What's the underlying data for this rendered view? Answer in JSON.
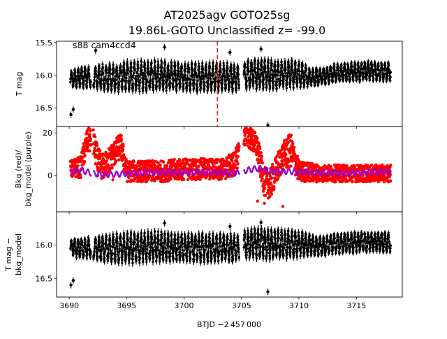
{
  "title_line1": "AT2025agv  GOTO25sg",
  "title_line2": "19.86L-GOTO Unclassified z= -99.0",
  "xlabel": "BTJD −2 457 000",
  "annotation": "s88 cam4ccd4",
  "colors": {
    "lightcurve": "#000000",
    "background": "#ff0000",
    "bkg_model": "#9400d3",
    "event_line": "#d62728"
  },
  "chart_data": [
    {
      "type": "scatter",
      "panel": "top",
      "ylabel": "T mag",
      "y_inverted": true,
      "xlim": [
        3688.9,
        3719.0
      ],
      "ylim": [
        16.78,
        15.48
      ],
      "x_ticks": [
        3690,
        3695,
        3700,
        3705,
        3710,
        3715
      ],
      "y_ticks": [
        15.5,
        16.0,
        16.5
      ],
      "y_tick_labels": [
        "15.5",
        "16.0",
        "16.5"
      ],
      "event_time": 3702.9,
      "series": [
        {
          "name": "T mag",
          "segments": [
            [
              3690.1,
              3691.9
            ],
            [
              3692.1,
              3704.8
            ],
            [
              3705.2,
              3718.0
            ]
          ],
          "x": [
            3690.1,
            3690.35,
            3690.5,
            3691.0,
            3691.6,
            3692.2,
            3693.0,
            3694.0,
            3695.0,
            3696.0,
            3697.0,
            3698.0,
            3699.0,
            3700.0,
            3701.0,
            3702.0,
            3703.0,
            3704.0,
            3704.6,
            3705.3,
            3706.0,
            3707.0,
            3708.0,
            3709.0,
            3710.0,
            3711.0,
            3712.0,
            3713.0,
            3714.0,
            3715.0,
            3716.0,
            3717.0,
            3718.0
          ],
          "median": [
            16.05,
            16.05,
            16.05,
            16.03,
            16.02,
            16.03,
            16.03,
            16.04,
            16.02,
            16.02,
            16.01,
            16.0,
            16.02,
            16.03,
            16.03,
            16.03,
            16.02,
            16.03,
            16.05,
            16.0,
            15.98,
            15.98,
            15.99,
            15.98,
            15.98,
            16.03,
            16.02,
            15.97,
            15.96,
            15.95,
            15.93,
            15.94,
            15.95
          ],
          "amplitude": [
            0.22,
            0.22,
            0.24,
            0.26,
            0.27,
            0.28,
            0.33,
            0.36,
            0.38,
            0.38,
            0.38,
            0.37,
            0.36,
            0.36,
            0.36,
            0.36,
            0.35,
            0.36,
            0.33,
            0.35,
            0.38,
            0.38,
            0.37,
            0.36,
            0.33,
            0.24,
            0.22,
            0.24,
            0.24,
            0.25,
            0.24,
            0.24,
            0.24
          ],
          "period": 0.3,
          "outliers": [
            [
              3690.15,
              16.6
            ],
            [
              3690.35,
              16.52
            ],
            [
              3698.3,
              15.57
            ],
            [
              3704.0,
              15.65
            ],
            [
              3707.3,
              16.76
            ],
            [
              3692.3,
              15.62
            ],
            [
              3706.7,
              15.6
            ]
          ]
        }
      ]
    },
    {
      "type": "scatter",
      "panel": "middle",
      "ylabel": "Bkg (red)/\nbkg_model (purple)",
      "xlim": [
        3688.9,
        3719.0
      ],
      "ylim": [
        -17,
        23
      ],
      "y_ticks": [
        0,
        20
      ],
      "y_tick_labels": [
        "0",
        "20"
      ],
      "series": [
        {
          "name": "Bkg",
          "x": [
            3690.1,
            3691.0,
            3691.5,
            3692.0,
            3692.5,
            3693.0,
            3694.0,
            3694.5,
            3695.0,
            3696.0,
            3698.0,
            3700.0,
            3702.0,
            3703.5,
            3704.5,
            3705.0,
            3705.5,
            3706.3,
            3707.0,
            3707.5,
            3708.5,
            3709.3,
            3710.0,
            3712.0,
            3714.0,
            3716.0,
            3718.0
          ],
          "center": [
            3,
            4,
            15,
            18,
            6,
            4,
            11,
            14,
            2,
            2,
            2,
            3,
            3,
            3,
            6,
            18,
            19,
            14,
            -3,
            -4,
            8,
            12,
            2,
            1,
            1,
            1,
            1
          ],
          "spread": [
            4,
            5,
            6,
            6,
            7,
            6,
            6,
            6,
            5,
            5,
            5,
            5,
            5,
            5,
            6,
            5,
            5,
            6,
            7,
            7,
            7,
            8,
            5,
            4,
            4,
            4,
            4
          ],
          "outliers": [
            [
              3708.6,
              -14.5
            ],
            [
              3707.0,
              -13
            ],
            [
              3706.4,
              -12
            ],
            [
              3693.8,
              -2
            ],
            [
              3701.6,
              4.5
            ]
          ]
        },
        {
          "name": "bkg_model",
          "x": [
            3690.1,
            3691.0,
            3692.0,
            3693.0,
            3694.0,
            3695.0,
            3698.0,
            3700.0,
            3703.0,
            3704.5,
            3705.5,
            3706.5,
            3707.5,
            3709.0,
            3711.0,
            3714.0,
            3716.0,
            3718.0
          ],
          "center": [
            1.5,
            2.5,
            1.0,
            0.5,
            0.5,
            1.0,
            1.5,
            1.5,
            1.5,
            1.0,
            2.5,
            3.5,
            2.0,
            2.0,
            1.5,
            1.0,
            1.5,
            2.0
          ],
          "wiggle": 1.3,
          "period": 0.5
        }
      ]
    },
    {
      "type": "scatter",
      "panel": "bottom",
      "ylabel": "T mag −\nbkg_model",
      "y_inverted": true,
      "xlim": [
        3688.9,
        3719.0
      ],
      "ylim": [
        16.78,
        15.5
      ],
      "x_ticks": [
        3690,
        3695,
        3700,
        3705,
        3710,
        3715
      ],
      "x_tick_labels": [
        "3690",
        "3695",
        "3700",
        "3705",
        "3710",
        "3715"
      ],
      "y_ticks": [
        16.0,
        16.5
      ],
      "y_tick_labels": [
        "16.0",
        "16.5"
      ],
      "series": [
        {
          "name": "T mag - bkg_model",
          "segments": [
            [
              3690.1,
              3691.9
            ],
            [
              3692.1,
              3704.8
            ],
            [
              3705.2,
              3718.0
            ]
          ],
          "x": [
            3690.1,
            3690.35,
            3690.5,
            3691.0,
            3691.6,
            3692.2,
            3693.0,
            3694.0,
            3695.0,
            3696.0,
            3697.0,
            3698.0,
            3699.0,
            3700.0,
            3701.0,
            3702.0,
            3703.0,
            3704.0,
            3704.6,
            3705.3,
            3706.0,
            3707.0,
            3708.0,
            3709.0,
            3710.0,
            3711.0,
            3712.0,
            3713.0,
            3714.0,
            3715.0,
            3716.0,
            3717.0,
            3718.0
          ],
          "median": [
            16.03,
            16.03,
            16.05,
            16.05,
            16.04,
            16.05,
            16.05,
            16.05,
            16.04,
            16.04,
            16.03,
            16.02,
            16.04,
            16.04,
            16.04,
            16.04,
            16.04,
            16.04,
            16.05,
            16.0,
            15.98,
            15.98,
            15.99,
            15.98,
            15.98,
            16.0,
            16.02,
            15.98,
            15.97,
            15.96,
            15.95,
            15.95,
            15.96
          ],
          "amplitude": [
            0.2,
            0.2,
            0.24,
            0.26,
            0.27,
            0.28,
            0.33,
            0.36,
            0.38,
            0.38,
            0.38,
            0.37,
            0.36,
            0.36,
            0.36,
            0.36,
            0.35,
            0.36,
            0.33,
            0.35,
            0.38,
            0.38,
            0.37,
            0.36,
            0.33,
            0.26,
            0.24,
            0.25,
            0.25,
            0.26,
            0.25,
            0.25,
            0.25
          ],
          "period": 0.3,
          "outliers": [
            [
              3690.15,
              16.6
            ],
            [
              3690.35,
              16.53
            ],
            [
              3698.3,
              15.67
            ],
            [
              3704.0,
              15.72
            ],
            [
              3707.3,
              16.7
            ],
            [
              3706.7,
              15.66
            ]
          ]
        }
      ]
    }
  ]
}
